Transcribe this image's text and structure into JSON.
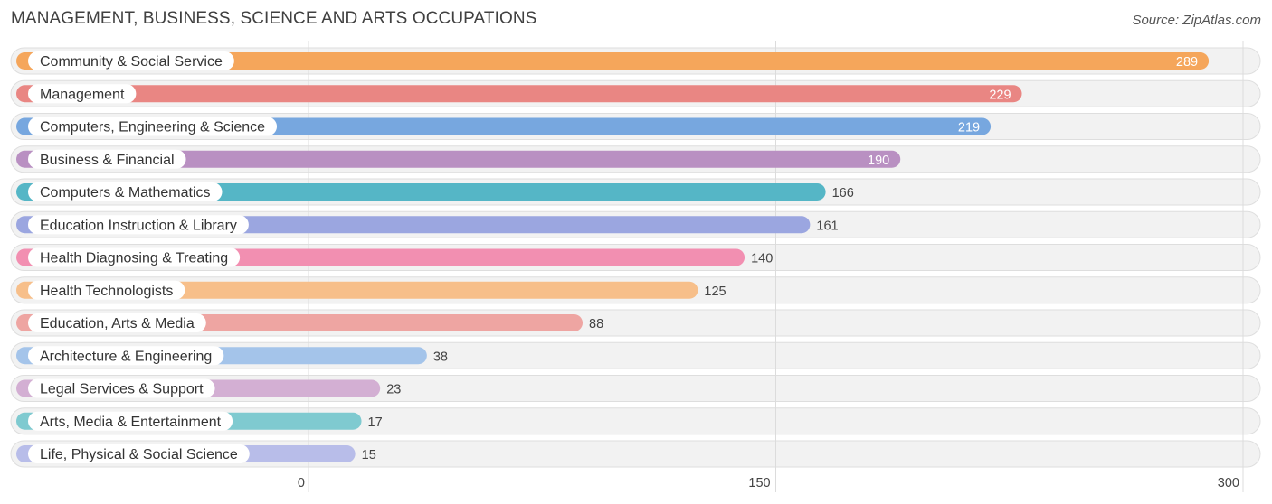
{
  "header": {
    "title": "MANAGEMENT, BUSINESS, SCIENCE AND ARTS OCCUPATIONS",
    "source": "Source: ZipAtlas.com"
  },
  "chart_data": {
    "type": "bar",
    "orientation": "horizontal",
    "title": "MANAGEMENT, BUSINESS, SCIENCE AND ARTS OCCUPATIONS",
    "xlim": [
      0,
      300
    ],
    "x_ticks": [
      "0",
      "150",
      "300"
    ],
    "x_tick_values": [
      0,
      150,
      300
    ],
    "grid": true,
    "categories": [
      "Community & Social Service",
      "Management",
      "Computers, Engineering & Science",
      "Business & Financial",
      "Computers & Mathematics",
      "Education Instruction & Library",
      "Health Diagnosing & Treating",
      "Health Technologists",
      "Education, Arts & Media",
      "Architecture & Engineering",
      "Legal Services & Support",
      "Arts, Media & Entertainment",
      "Life, Physical & Social Science"
    ],
    "values": [
      289,
      229,
      219,
      190,
      166,
      161,
      140,
      125,
      88,
      38,
      23,
      17,
      15
    ],
    "colors": [
      "#f5a65b",
      "#e98683",
      "#77a7df",
      "#b990c2",
      "#55b6c6",
      "#9ba6e0",
      "#f28fb1",
      "#f7bf8a",
      "#eea5a2",
      "#a4c4ea",
      "#d3afd3",
      "#7fcad0",
      "#b8bde9"
    ]
  }
}
